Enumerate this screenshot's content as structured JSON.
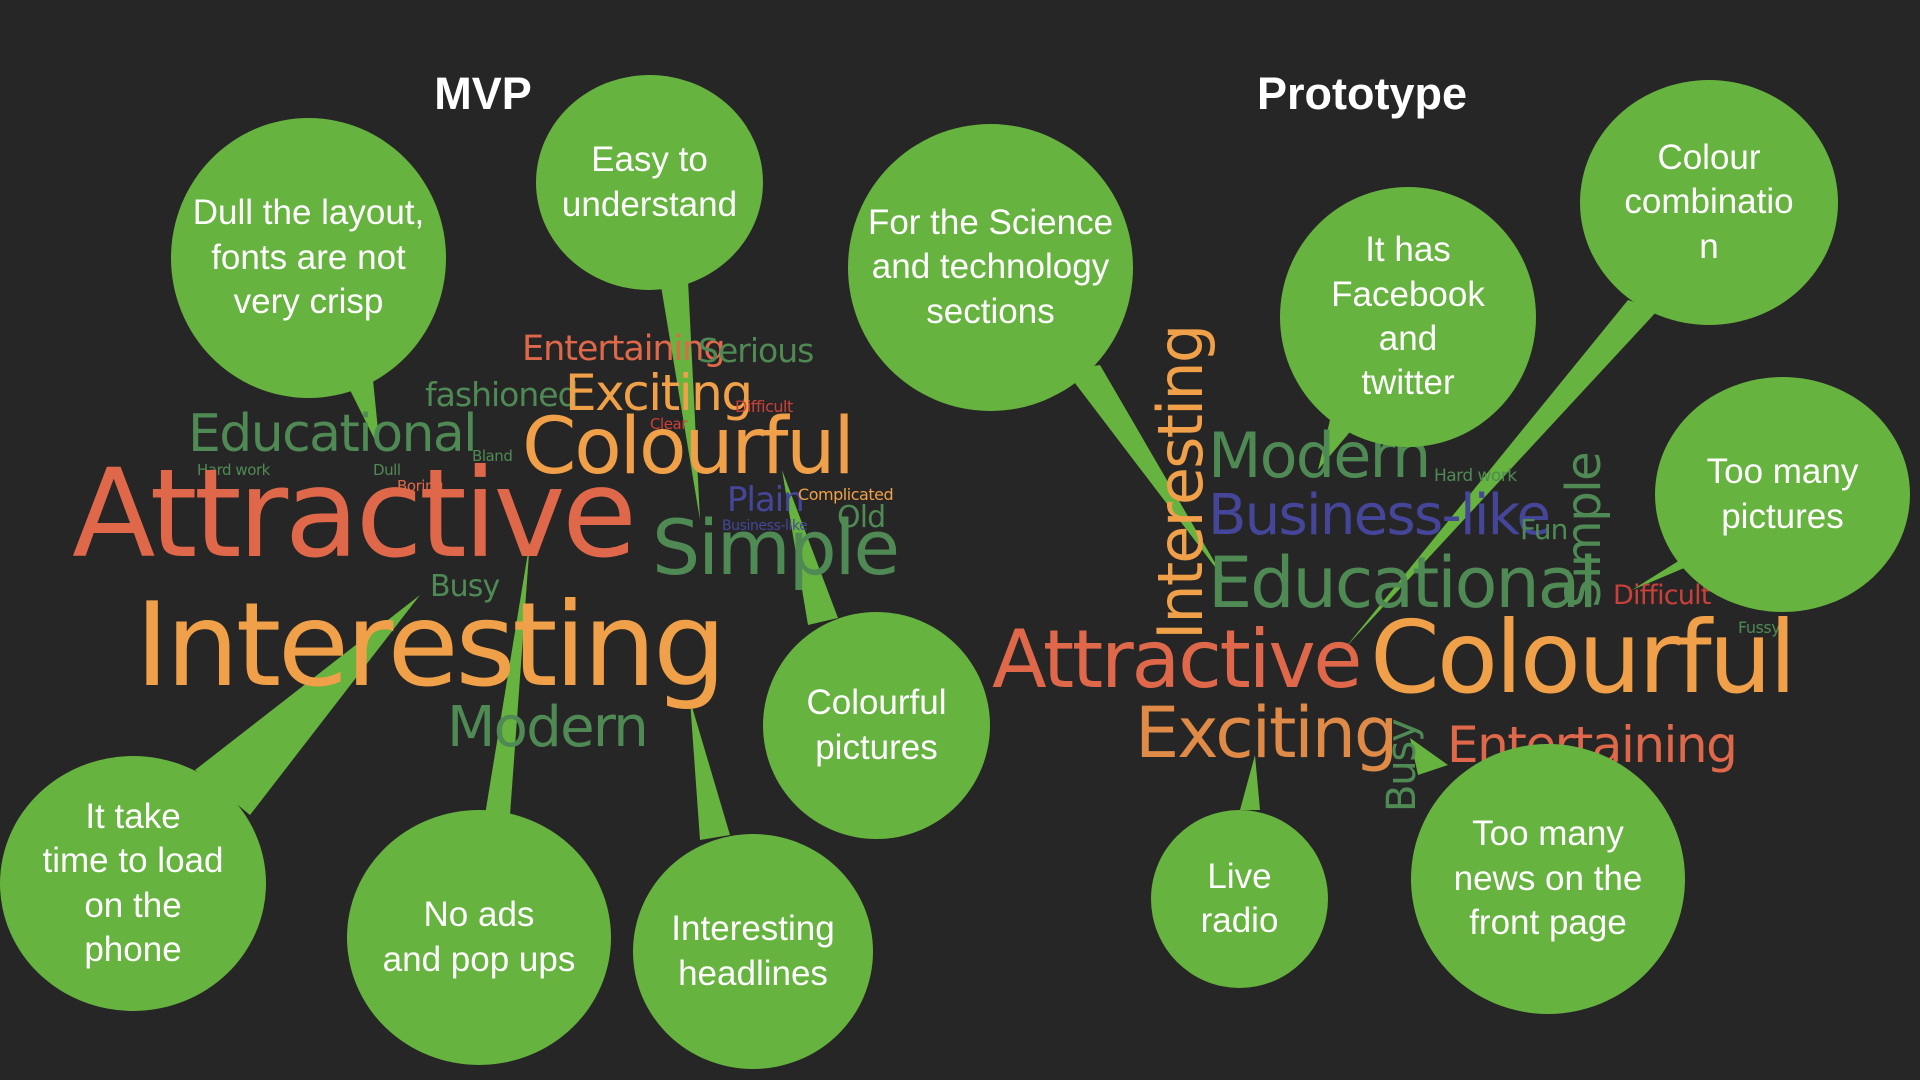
{
  "headings": {
    "mvp": "MVP",
    "prototype": "Prototype"
  },
  "colors": {
    "bubble": "#67b33f",
    "orange": "#f0a048",
    "red_orange": "#e0684a",
    "green": "#4f8a55",
    "blue": "#45469a",
    "red": "#c9403a",
    "background": "#262626"
  },
  "mvp_words": [
    "Entertaining",
    "Serious",
    "fashioned",
    "Exciting",
    "Difficult",
    "Educational",
    "Clear",
    "Colourful",
    "Hard work",
    "Dull",
    "Boring",
    "Bland",
    "Attractive",
    "Plain",
    "Complicated",
    "Business-like",
    "Old",
    "Simple",
    "Busy",
    "Interesting",
    "Modern"
  ],
  "prototype_words": [
    "Interesting",
    "Modern",
    "Hard work",
    "Business-like",
    "Fun",
    "Simple",
    "Educational",
    "Difficult",
    "Fussy",
    "Attractive",
    "Colourful",
    "Exciting",
    "Busy",
    "Entertaining"
  ],
  "mvp_bubbles": [
    "Dull the layout,\nfonts are not\nvery crisp",
    "Easy to\nunderstand",
    "Colourful\npictures",
    "It take\ntime to load\non the\nphone",
    "No ads\nand pop ups",
    "Interesting\nheadlines"
  ],
  "prototype_bubbles": [
    "For the Science\nand technology\nsections",
    "It has\nFacebook and\ntwitter",
    "Colour\ncombinatio\nn",
    "Too many\npictures",
    "Live\nradio",
    "Too many\nnews on the\nfront page"
  ]
}
